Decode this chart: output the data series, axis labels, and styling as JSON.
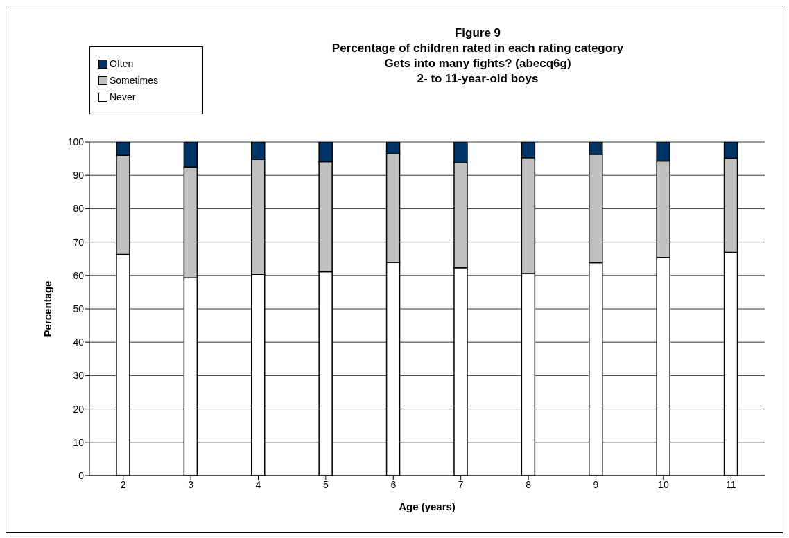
{
  "chart_data": {
    "type": "bar",
    "title": "Figure 9\nPercentage of children rated in each rating category\nGets into many fights? (abecq6g)\n2- to 11-year-old boys",
    "xlabel": "Age (years)",
    "ylabel": "Percentage",
    "categories": [
      "2",
      "3",
      "4",
      "5",
      "6",
      "7",
      "8",
      "9",
      "10",
      "11"
    ],
    "stacked": true,
    "series": [
      {
        "name": "Never",
        "color": "#ffffff",
        "values": [
          66.3,
          59.3,
          60.3,
          61.1,
          63.9,
          62.3,
          60.6,
          63.8,
          65.4,
          66.9
        ]
      },
      {
        "name": "Sometimes",
        "color": "#c0c0c0",
        "values": [
          29.7,
          33.2,
          34.5,
          33.0,
          32.5,
          31.4,
          34.7,
          32.5,
          28.9,
          28.2
        ]
      },
      {
        "name": "Often",
        "color": "#003366",
        "values": [
          4.0,
          7.5,
          5.2,
          5.9,
          3.6,
          6.3,
          4.7,
          3.7,
          5.7,
          4.9
        ]
      }
    ],
    "ylim": [
      0,
      100
    ],
    "yticks": [
      0,
      10,
      20,
      30,
      40,
      50,
      60,
      70,
      80,
      90,
      100
    ],
    "grid": "y",
    "legend": "top left"
  }
}
